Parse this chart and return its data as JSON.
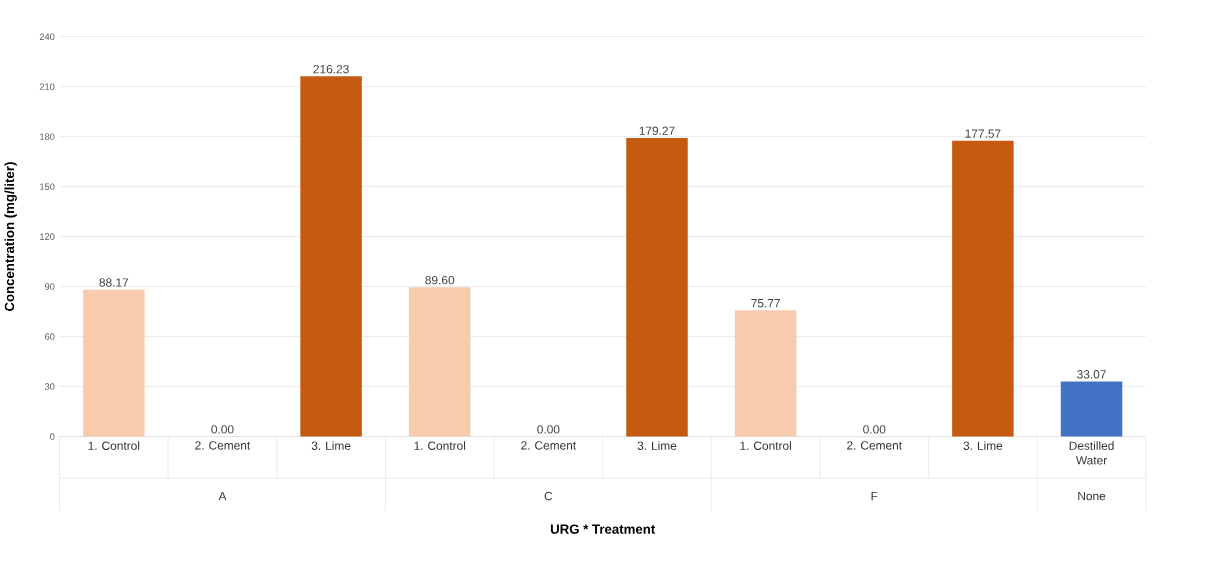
{
  "chart_data": {
    "type": "bar",
    "xlabel": "URG * Treatment",
    "ylabel": "Concentration (mg/liter)",
    "categories": [
      "1. Control",
      "2. Cement",
      "3. Lime",
      "1. Control",
      "2. Cement",
      "3. Lime",
      "1. Control",
      "2. Cement",
      "3. Lime",
      "Destilled Water"
    ],
    "values": [
      88.17,
      0,
      216.23,
      89.6,
      0,
      179.27,
      75.77,
      0,
      177.57,
      33.07
    ],
    "value_labels": [
      "88.17",
      "0.00",
      "216.23",
      "89.60",
      "0.00",
      "179.27",
      "75.77",
      "0.00",
      "177.57",
      "33.07"
    ],
    "colors": [
      "#f8cbad",
      "#f8cbad",
      "#c55a11",
      "#f8cbad",
      "#f8cbad",
      "#c55a11",
      "#f8cbad",
      "#f8cbad",
      "#c55a11",
      "#4472c4"
    ],
    "annotations": [
      "A",
      "C",
      "F",
      "None"
    ],
    "ylim": [
      0,
      240
    ],
    "yticks": [
      0,
      30,
      60,
      90,
      120,
      150,
      180,
      210,
      240
    ],
    "grid": "y"
  }
}
